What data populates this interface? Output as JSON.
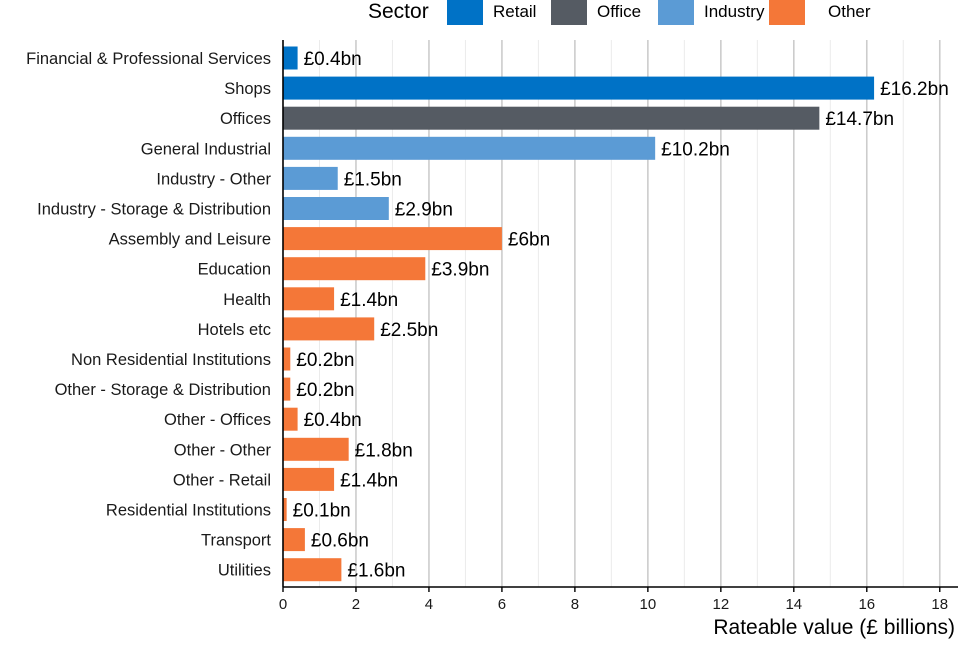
{
  "chart_data": {
    "type": "bar",
    "orientation": "horizontal",
    "title": "",
    "xlabel": "Rateable value (£ billions)",
    "ylabel": "",
    "xlim": [
      0,
      18.5
    ],
    "xticks": [
      0,
      2,
      4,
      6,
      8,
      10,
      12,
      14,
      16,
      18
    ],
    "grid": true,
    "legend": {
      "title": "Sector",
      "position": "top",
      "entries": [
        {
          "name": "Retail",
          "color": "#0072c6"
        },
        {
          "name": "Office",
          "color": "#555b63"
        },
        {
          "name": "Industry",
          "color": "#5b9bd5"
        },
        {
          "name": "Other",
          "color": "#f47738"
        }
      ]
    },
    "bars": [
      {
        "category": "Financial & Professional Services",
        "value": 0.4,
        "label": "£0.4bn",
        "sector": "Retail"
      },
      {
        "category": "Shops",
        "value": 16.2,
        "label": "£16.2bn",
        "sector": "Retail"
      },
      {
        "category": "Offices",
        "value": 14.7,
        "label": "£14.7bn",
        "sector": "Office"
      },
      {
        "category": "General Industrial",
        "value": 10.2,
        "label": "£10.2bn",
        "sector": "Industry"
      },
      {
        "category": "Industry - Other",
        "value": 1.5,
        "label": "£1.5bn",
        "sector": "Industry"
      },
      {
        "category": "Industry - Storage & Distribution",
        "value": 2.9,
        "label": "£2.9bn",
        "sector": "Industry"
      },
      {
        "category": "Assembly and Leisure",
        "value": 6.0,
        "label": "£6bn",
        "sector": "Other"
      },
      {
        "category": "Education",
        "value": 3.9,
        "label": "£3.9bn",
        "sector": "Other"
      },
      {
        "category": "Health",
        "value": 1.4,
        "label": "£1.4bn",
        "sector": "Other"
      },
      {
        "category": "Hotels etc",
        "value": 2.5,
        "label": "£2.5bn",
        "sector": "Other"
      },
      {
        "category": "Non Residential Institutions",
        "value": 0.2,
        "label": "£0.2bn",
        "sector": "Other"
      },
      {
        "category": "Other - Storage & Distribution",
        "value": 0.2,
        "label": "£0.2bn",
        "sector": "Other"
      },
      {
        "category": "Other - Offices",
        "value": 0.4,
        "label": "£0.4bn",
        "sector": "Other"
      },
      {
        "category": "Other - Other",
        "value": 1.8,
        "label": "£1.8bn",
        "sector": "Other"
      },
      {
        "category": "Other - Retail",
        "value": 1.4,
        "label": "£1.4bn",
        "sector": "Other"
      },
      {
        "category": "Residential Institutions",
        "value": 0.1,
        "label": "£0.1bn",
        "sector": "Other"
      },
      {
        "category": "Transport",
        "value": 0.6,
        "label": "£0.6bn",
        "sector": "Other"
      },
      {
        "category": "Utilities",
        "value": 1.6,
        "label": "£1.6bn",
        "sector": "Other"
      }
    ]
  }
}
